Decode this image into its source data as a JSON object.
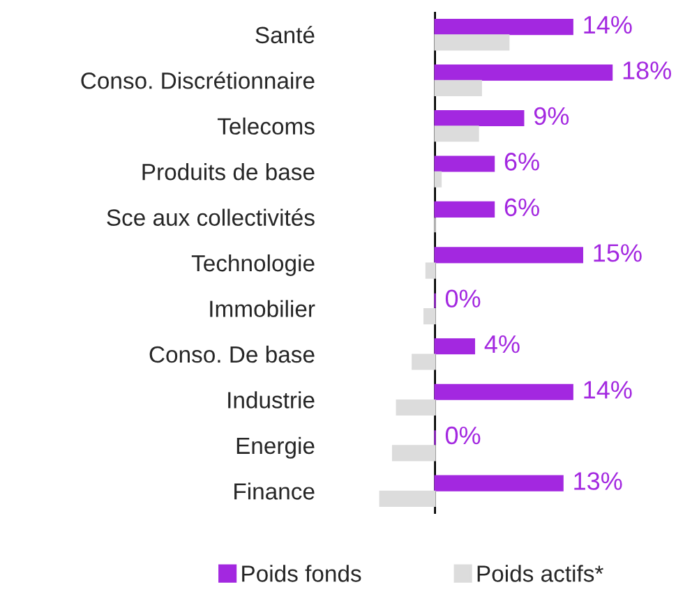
{
  "chart_data": {
    "type": "bar",
    "orientation": "horizontal",
    "categories": [
      "Santé",
      "Conso. Discrétionnaire",
      "Telecoms",
      "Produits de base",
      "Sce aux collectivités",
      "Technologie",
      "Immobilier",
      "Conso. De base",
      "Industrie",
      "Energie",
      "Finance"
    ],
    "series": [
      {
        "name": "Poids fonds",
        "color": "#a328e0",
        "values": [
          14,
          18,
          9,
          6,
          6,
          15,
          0,
          4,
          14,
          0,
          13
        ],
        "value_labels": [
          "14%",
          "18%",
          "9%",
          "6%",
          "6%",
          "15%",
          "0%",
          "4%",
          "14%",
          "0%",
          "13%"
        ]
      },
      {
        "name": "Poids actifs*",
        "color": "#dcdcdc",
        "values": [
          7.5,
          4.7,
          4.4,
          0.6,
          0,
          -0.9,
          -1.1,
          -2.3,
          -3.9,
          -4.3,
          -5.6
        ]
      }
    ],
    "tick_labels": "y",
    "grid": false,
    "legend": "bottom"
  }
}
